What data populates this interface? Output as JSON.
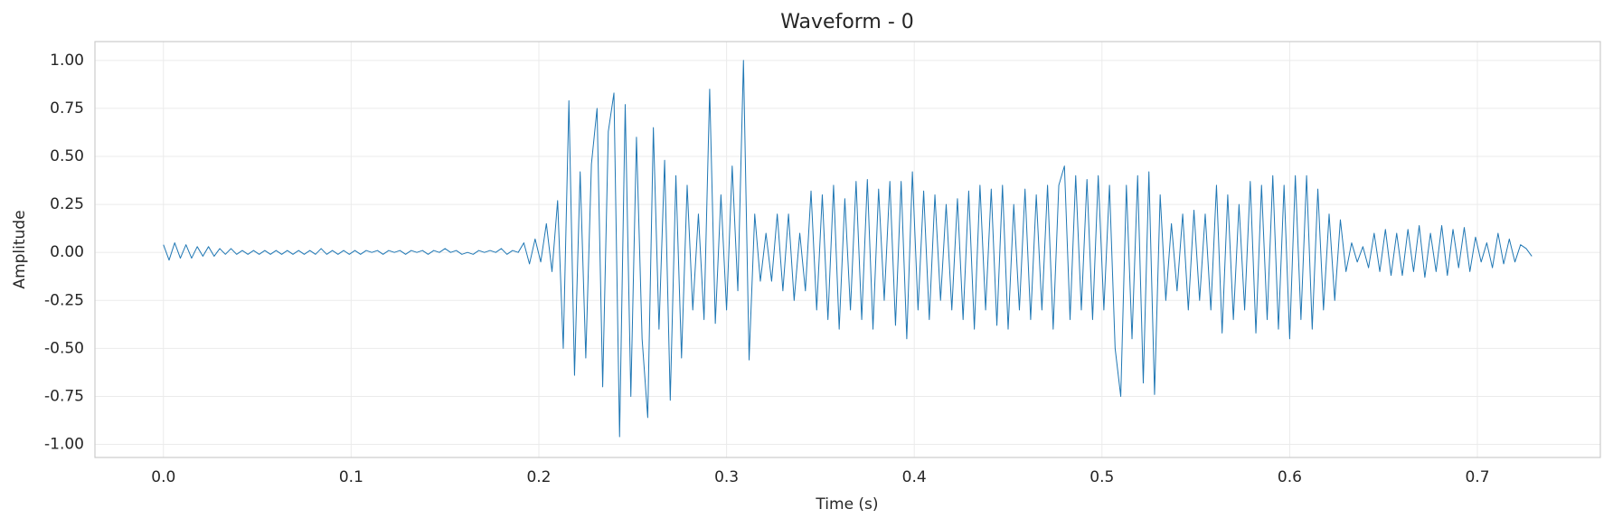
{
  "chart_data": {
    "type": "line",
    "title": "Waveform - 0",
    "x_label": "Time (s)",
    "y_label": "Amplitude",
    "x": [
      0,
      0.003,
      0.006,
      0.009,
      0.012,
      0.015,
      0.018,
      0.021,
      0.024,
      0.027,
      0.03,
      0.033,
      0.036,
      0.039,
      0.042,
      0.045,
      0.048,
      0.051,
      0.054,
      0.057,
      0.06,
      0.063,
      0.066,
      0.069,
      0.072,
      0.075,
      0.078,
      0.081,
      0.084,
      0.087,
      0.09,
      0.093,
      0.096,
      0.099,
      0.102,
      0.105,
      0.108,
      0.111,
      0.114,
      0.117,
      0.12,
      0.123,
      0.126,
      0.129,
      0.132,
      0.135,
      0.138,
      0.141,
      0.144,
      0.147,
      0.15,
      0.153,
      0.156,
      0.159,
      0.162,
      0.165,
      0.168,
      0.171,
      0.174,
      0.177,
      0.18,
      0.183,
      0.186,
      0.189,
      0.192,
      0.195,
      0.198,
      0.201,
      0.204,
      0.207,
      0.21,
      0.213,
      0.216,
      0.219,
      0.222,
      0.225,
      0.228,
      0.231,
      0.234,
      0.237,
      0.24,
      0.243,
      0.246,
      0.249,
      0.252,
      0.255,
      0.258,
      0.261,
      0.264,
      0.267,
      0.27,
      0.273,
      0.276,
      0.279,
      0.282,
      0.285,
      0.288,
      0.291,
      0.294,
      0.297,
      0.3,
      0.303,
      0.306,
      0.309,
      0.312,
      0.315,
      0.318,
      0.321,
      0.324,
      0.327,
      0.33,
      0.333,
      0.336,
      0.339,
      0.342,
      0.345,
      0.348,
      0.351,
      0.354,
      0.357,
      0.36,
      0.363,
      0.366,
      0.369,
      0.372,
      0.375,
      0.378,
      0.381,
      0.384,
      0.387,
      0.39,
      0.393,
      0.396,
      0.399,
      0.402,
      0.405,
      0.408,
      0.411,
      0.414,
      0.417,
      0.42,
      0.423,
      0.426,
      0.429,
      0.432,
      0.435,
      0.438,
      0.441,
      0.444,
      0.447,
      0.45,
      0.453,
      0.456,
      0.459,
      0.462,
      0.465,
      0.468,
      0.471,
      0.474,
      0.477,
      0.48,
      0.483,
      0.486,
      0.489,
      0.492,
      0.495,
      0.498,
      0.501,
      0.504,
      0.507,
      0.51,
      0.513,
      0.516,
      0.519,
      0.522,
      0.525,
      0.528,
      0.531,
      0.534,
      0.537,
      0.54,
      0.543,
      0.546,
      0.549,
      0.552,
      0.555,
      0.558,
      0.561,
      0.564,
      0.567,
      0.57,
      0.573,
      0.576,
      0.579,
      0.582,
      0.585,
      0.588,
      0.591,
      0.594,
      0.597,
      0.6,
      0.603,
      0.606,
      0.609,
      0.612,
      0.615,
      0.618,
      0.621,
      0.624,
      0.627,
      0.63,
      0.633,
      0.636,
      0.639,
      0.642,
      0.645,
      0.648,
      0.651,
      0.654,
      0.657,
      0.66,
      0.663,
      0.666,
      0.669,
      0.672,
      0.675,
      0.678,
      0.681,
      0.684,
      0.687,
      0.69,
      0.693,
      0.696,
      0.699,
      0.702,
      0.705,
      0.708,
      0.711,
      0.714,
      0.717,
      0.72,
      0.723,
      0.726,
      0.729
    ],
    "values": [
      0.04,
      -0.04,
      0.05,
      -0.03,
      0.04,
      -0.03,
      0.03,
      -0.02,
      0.03,
      -0.02,
      0.02,
      -0.01,
      0.02,
      -0.01,
      0.01,
      -0.01,
      0.01,
      -0.01,
      0.01,
      -0.01,
      0.01,
      -0.01,
      0.01,
      -0.01,
      0.01,
      -0.01,
      0.01,
      -0.01,
      0.02,
      -0.01,
      0.01,
      -0.01,
      0.01,
      -0.01,
      0.01,
      -0.01,
      0.01,
      0,
      0.01,
      -0.01,
      0.01,
      0,
      0.01,
      -0.01,
      0.01,
      0,
      0.01,
      -0.01,
      0.01,
      0,
      0.02,
      0,
      0.01,
      -0.01,
      0,
      -0.01,
      0.01,
      0,
      0.01,
      0,
      0.02,
      -0.01,
      0.01,
      0,
      0.05,
      -0.06,
      0.07,
      -0.05,
      0.15,
      -0.1,
      0.27,
      -0.5,
      0.79,
      -0.64,
      0.42,
      -0.55,
      0.46,
      0.75,
      -0.7,
      0.63,
      0.83,
      -0.96,
      0.77,
      -0.75,
      0.6,
      -0.45,
      -0.86,
      0.65,
      -0.4,
      0.48,
      -0.77,
      0.4,
      -0.55,
      0.35,
      -0.3,
      0.2,
      -0.35,
      0.85,
      -0.37,
      0.3,
      -0.3,
      0.45,
      -0.2,
      1.0,
      -0.56,
      0.2,
      -0.15,
      0.1,
      -0.15,
      0.2,
      -0.2,
      0.2,
      -0.25,
      0.1,
      -0.2,
      0.32,
      -0.3,
      0.3,
      -0.35,
      0.35,
      -0.4,
      0.28,
      -0.3,
      0.37,
      -0.35,
      0.38,
      -0.4,
      0.33,
      -0.25,
      0.37,
      -0.38,
      0.37,
      -0.45,
      0.42,
      -0.3,
      0.32,
      -0.35,
      0.3,
      -0.25,
      0.25,
      -0.3,
      0.28,
      -0.35,
      0.32,
      -0.4,
      0.35,
      -0.3,
      0.33,
      -0.38,
      0.35,
      -0.4,
      0.25,
      -0.3,
      0.33,
      -0.35,
      0.3,
      -0.3,
      0.35,
      -0.4,
      0.35,
      0.45,
      -0.35,
      0.4,
      -0.3,
      0.38,
      -0.35,
      0.4,
      -0.3,
      0.35,
      -0.5,
      -0.75,
      0.35,
      -0.45,
      0.4,
      -0.68,
      0.42,
      -0.74,
      0.3,
      -0.25,
      0.15,
      -0.2,
      0.2,
      -0.3,
      0.22,
      -0.25,
      0.2,
      -0.3,
      0.35,
      -0.42,
      0.3,
      -0.35,
      0.25,
      -0.3,
      0.37,
      -0.42,
      0.35,
      -0.35,
      0.4,
      -0.4,
      0.35,
      -0.45,
      0.4,
      -0.35,
      0.4,
      -0.4,
      0.33,
      -0.3,
      0.2,
      -0.25,
      0.17,
      -0.1,
      0.05,
      -0.05,
      0.03,
      -0.08,
      0.1,
      -0.1,
      0.12,
      -0.12,
      0.1,
      -0.12,
      0.12,
      -0.1,
      0.14,
      -0.13,
      0.1,
      -0.1,
      0.14,
      -0.12,
      0.12,
      -0.08,
      0.13,
      -0.1,
      0.08,
      -0.05,
      0.05,
      -0.08,
      0.1,
      -0.06,
      0.07,
      -0.05,
      0.04,
      0.02,
      -0.02
    ],
    "color": "#1f77b4",
    "xlim": [
      -0.0365,
      0.7655
    ],
    "xticks": [
      {
        "value": 0,
        "label": "0.0"
      },
      0.1,
      0.2,
      0.3,
      0.4,
      0.5,
      0.6,
      0.7
    ],
    "ylim": [
      -1.068,
      1.098
    ],
    "yticks": [
      {
        "value": 1,
        "label": "1.00"
      },
      {
        "value": 0.75,
        "label": "0.75"
      },
      {
        "value": 0.5,
        "label": "0.50"
      },
      {
        "value": 0.25,
        "label": "0.25"
      },
      {
        "value": 0,
        "label": "0.00"
      },
      {
        "value": -0.25,
        "label": "-0.25"
      },
      {
        "value": -0.5,
        "label": "-0.50"
      },
      {
        "value": -0.75,
        "label": "-0.75"
      },
      {
        "value": -1,
        "label": "-1.00"
      }
    ],
    "grid": true
  }
}
